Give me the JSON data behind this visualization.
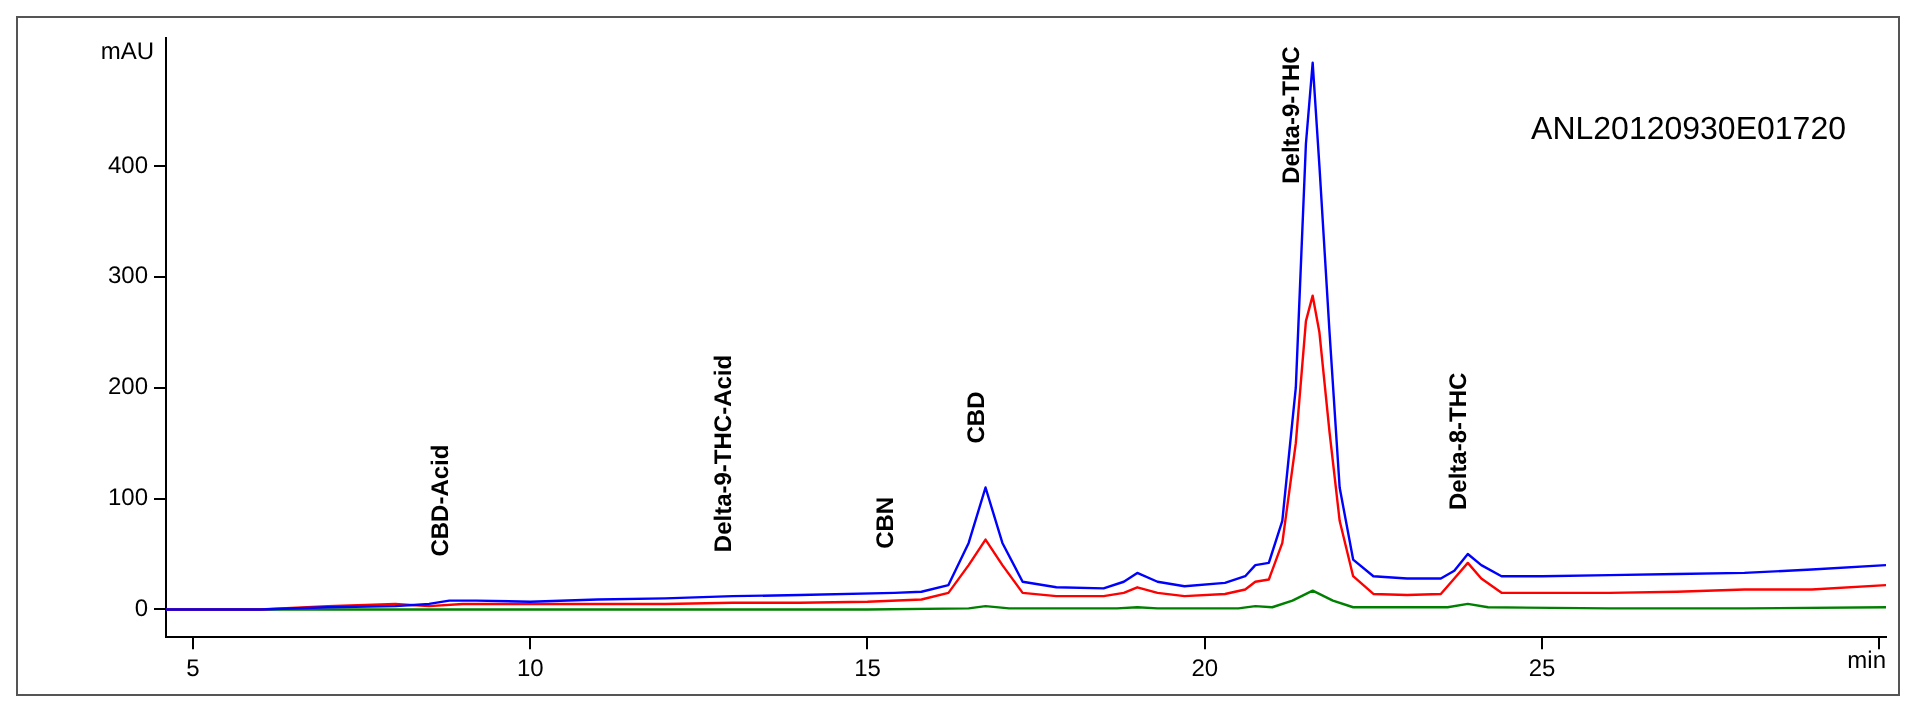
{
  "chart_data": {
    "type": "line",
    "xlabel": "min",
    "ylabel": "mAU",
    "xlim": [
      4.6,
      30.1
    ],
    "ylim": [
      -25,
      515
    ],
    "xticks": [
      5,
      10,
      15,
      20,
      25,
      {
        "value": 30,
        "label": null
      }
    ],
    "yticks": [
      0,
      100,
      200,
      300,
      400
    ],
    "grid": false,
    "legend": false,
    "marker": "none",
    "line_style": "solid",
    "series": [
      {
        "color": "#0000ff",
        "x": [
          4.6,
          6,
          7,
          8,
          8.5,
          8.8,
          9.2,
          10,
          11,
          12,
          13,
          14,
          15.4,
          15.8,
          16.2,
          16.5,
          16.75,
          17.0,
          17.3,
          17.8,
          18.5,
          18.8,
          19.0,
          19.3,
          19.7,
          20.3,
          20.6,
          20.75,
          20.95,
          21.15,
          21.35,
          21.5,
          21.6,
          21.7,
          21.85,
          22.0,
          22.2,
          22.5,
          23.0,
          23.5,
          23.7,
          23.9,
          24.1,
          24.4,
          25,
          26,
          27,
          28,
          29,
          30.1
        ],
        "values": [
          0,
          0,
          2,
          3,
          5,
          8,
          8,
          7,
          9,
          10,
          12,
          13,
          15,
          16,
          22,
          60,
          110,
          60,
          25,
          20,
          19,
          25,
          33,
          25,
          21,
          24,
          30,
          40,
          42,
          80,
          200,
          420,
          493,
          400,
          250,
          110,
          45,
          30,
          28,
          28,
          35,
          50,
          40,
          30,
          30,
          31,
          32,
          33,
          36,
          40
        ]
      },
      {
        "color": "#ff0000",
        "x": [
          4.6,
          6,
          7,
          8,
          8.5,
          9,
          10,
          11,
          12,
          13,
          14,
          15,
          15.8,
          16.2,
          16.5,
          16.75,
          17.0,
          17.3,
          17.8,
          18.5,
          18.8,
          19.0,
          19.3,
          19.7,
          20.3,
          20.6,
          20.75,
          20.95,
          21.15,
          21.35,
          21.5,
          21.6,
          21.7,
          21.85,
          22.0,
          22.2,
          22.5,
          23.0,
          23.5,
          23.7,
          23.9,
          24.1,
          24.4,
          25,
          26,
          27,
          28,
          29,
          30.1
        ],
        "values": [
          0,
          0,
          3,
          5,
          3,
          5,
          5,
          5,
          5,
          6,
          6,
          7,
          9,
          15,
          40,
          63,
          40,
          15,
          12,
          12,
          15,
          20,
          15,
          12,
          14,
          18,
          25,
          27,
          60,
          150,
          260,
          283,
          250,
          160,
          80,
          30,
          14,
          13,
          14,
          28,
          42,
          28,
          15,
          15,
          15,
          16,
          18,
          18,
          22
        ]
      },
      {
        "color": "#008000",
        "x": [
          4.6,
          10,
          15,
          16.5,
          16.75,
          17.1,
          18.7,
          19.0,
          19.3,
          20.5,
          20.75,
          21.0,
          21.3,
          21.6,
          21.9,
          22.2,
          23.6,
          23.9,
          24.2,
          26,
          28,
          30.1
        ],
        "values": [
          0,
          0,
          0,
          1,
          3,
          1,
          1,
          2,
          1,
          1,
          3,
          2,
          8,
          17,
          8,
          2,
          2,
          5,
          2,
          1,
          1,
          2
        ]
      }
    ],
    "annotations": [
      {
        "text": "CBD-Acid",
        "x": 8.8,
        "y": 8
      },
      {
        "text": "Delta-9-THC-Acid",
        "x": 13,
        "y": 12
      },
      {
        "text": "CBN",
        "x": 15.4,
        "y": 15
      },
      {
        "text": "CBD",
        "x": 16.75,
        "y": 110
      },
      {
        "text": "Delta-9-THC",
        "x": 21.6,
        "y": 493
      },
      {
        "text": "Delta-8-THC",
        "x": 23.9,
        "y": 50
      },
      "ANL20120930E01720"
    ]
  }
}
